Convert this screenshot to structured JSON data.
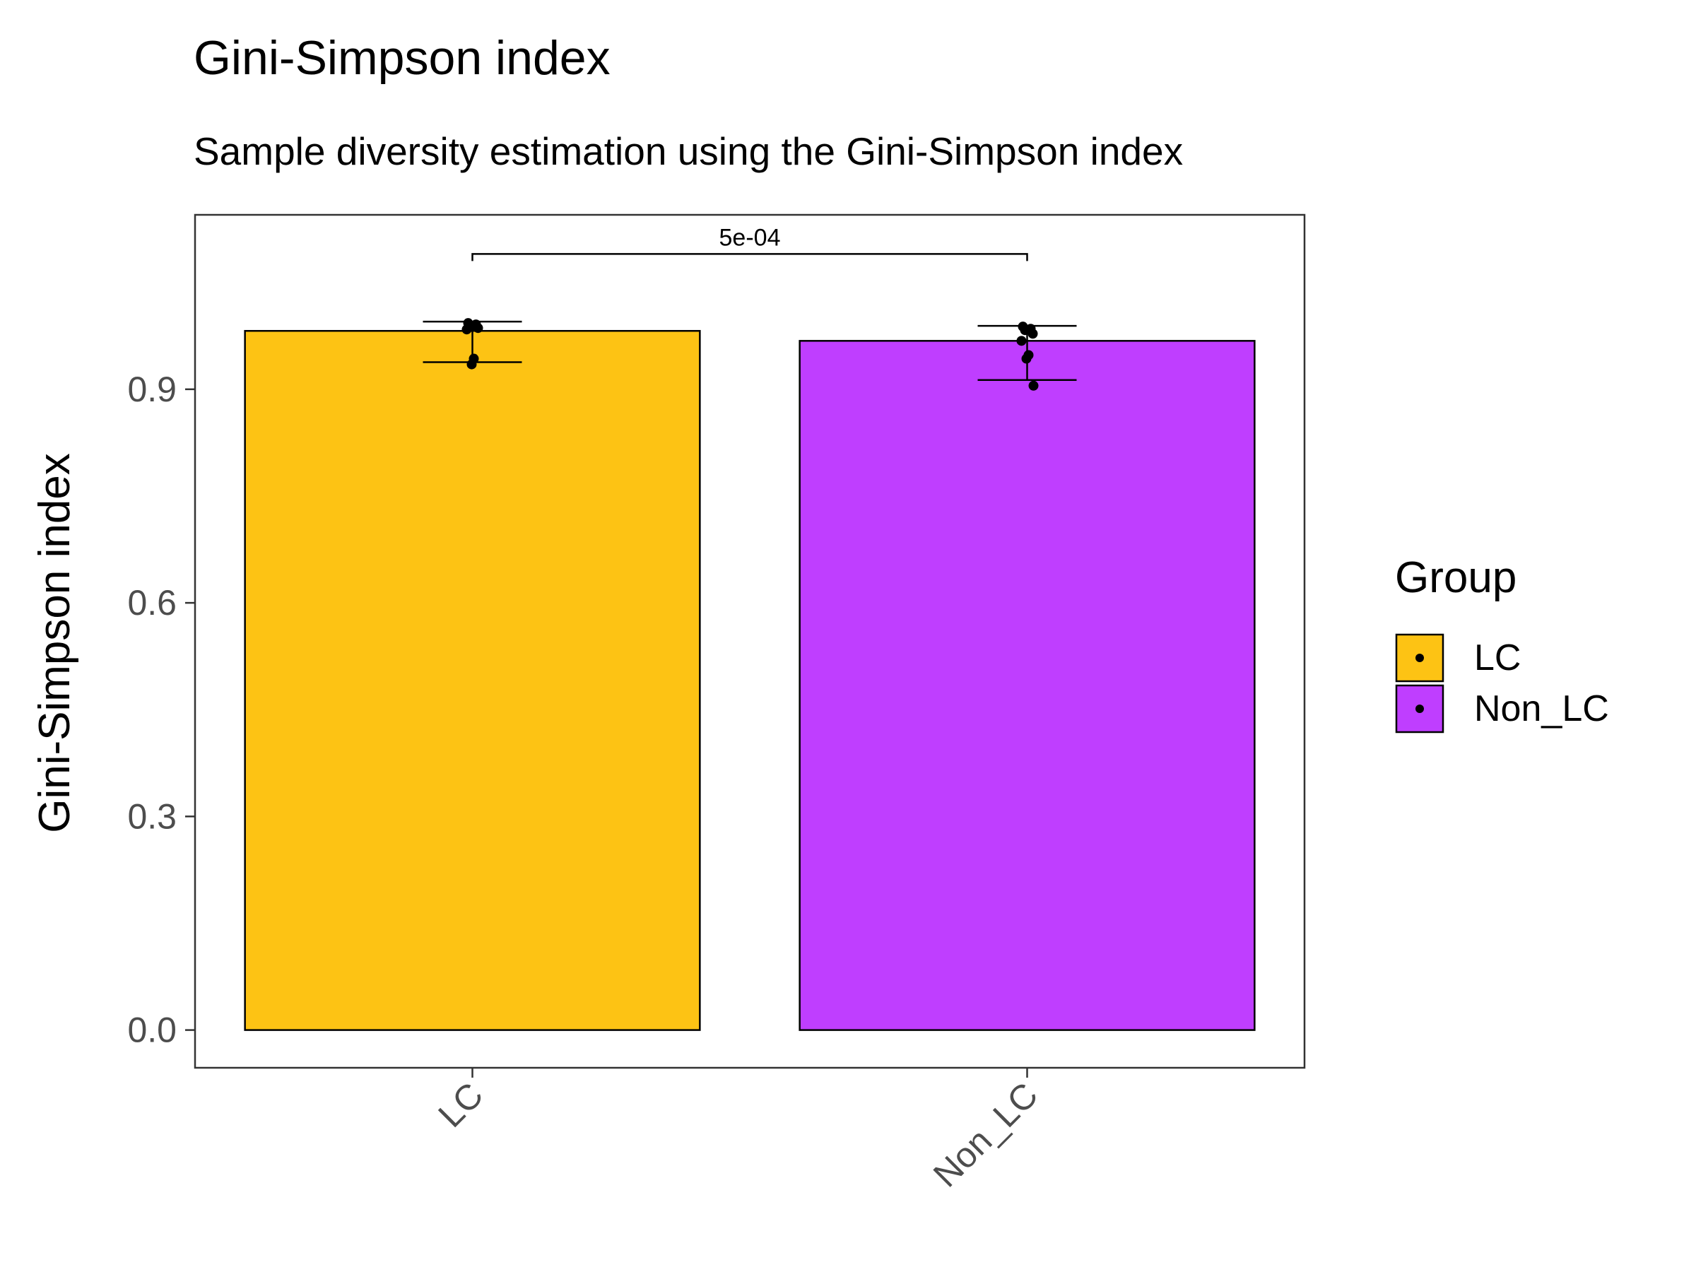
{
  "title": "Gini-Simpson index",
  "subtitle": "Sample diversity estimation using the Gini-Simpson index",
  "chart_data": {
    "type": "bar",
    "title": "Gini-Simpson index",
    "subtitle": "Sample diversity estimation using the Gini-Simpson index",
    "xlabel": "",
    "ylabel": "Gini-Simpson index",
    "categories": [
      "LC",
      "Non_LC"
    ],
    "values": [
      0.982,
      0.968
    ],
    "error_bars": [
      {
        "lower": 0.938,
        "upper": 0.995
      },
      {
        "lower": 0.913,
        "upper": 0.989
      }
    ],
    "points": [
      [
        0.993,
        0.991,
        0.988,
        0.986,
        0.984,
        0.943,
        0.935
      ],
      [
        0.988,
        0.985,
        0.983,
        0.978,
        0.968,
        0.948,
        0.943,
        0.905
      ]
    ],
    "colors": [
      "#FDC314",
      "#BF3EFF"
    ],
    "yticks": [
      "0.0",
      "0.3",
      "0.6",
      "0.9"
    ],
    "ylim": [
      -0.053,
      1.145
    ],
    "grid": false,
    "legend": {
      "title": "Group",
      "position": "right",
      "entries": [
        "LC",
        "Non_LC"
      ]
    },
    "annotations": [
      {
        "text": "5e-04",
        "between": [
          "LC",
          "Non_LC"
        ],
        "y": 1.09
      }
    ]
  }
}
